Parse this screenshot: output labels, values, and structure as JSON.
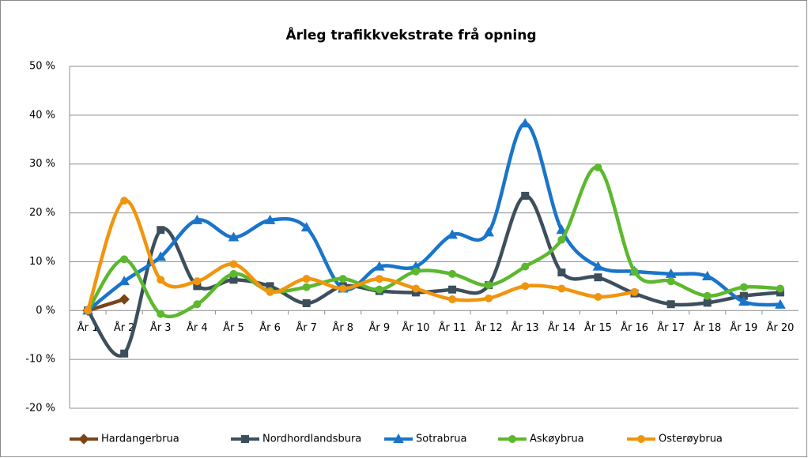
{
  "chart_data": {
    "type": "line",
    "title": "Årleg trafikkvekstrate frå opning",
    "categories": [
      "År 1",
      "År 2",
      "År 3",
      "År 4",
      "År 5",
      "År 6",
      "År 7",
      "År 8",
      "År 9",
      "År 10",
      "År 11",
      "År 12",
      "År 13",
      "År 14",
      "År 15",
      "År 16",
      "År 17",
      "År 18",
      "År 19",
      "År 20"
    ],
    "ylim": [
      -20,
      50
    ],
    "yticks": [
      {
        "value": -20,
        "label": "-20 %"
      },
      {
        "value": -10,
        "label": "-10 %"
      },
      {
        "value": 0,
        "label": "0 %"
      },
      {
        "value": 10,
        "label": "10 %"
      },
      {
        "value": 20,
        "label": "20 %"
      },
      {
        "value": 30,
        "label": "30 %"
      },
      {
        "value": 40,
        "label": "40 %"
      },
      {
        "value": 50,
        "label": "50 %"
      }
    ],
    "grid": true,
    "legend": "bottom",
    "series": [
      {
        "name": "Hardangerbrua",
        "color": "#7b4418",
        "marker": "diamond",
        "values": [
          0,
          2.3,
          null,
          null,
          null,
          null,
          null,
          null,
          null,
          null,
          null,
          null,
          null,
          null,
          null,
          null,
          null,
          null,
          null,
          null
        ]
      },
      {
        "name": "Nordhordlandsbura",
        "color": "#3d4f5c",
        "marker": "square",
        "values": [
          0,
          -8.8,
          16.5,
          5,
          6.3,
          5,
          1.5,
          5,
          4,
          3.7,
          4.3,
          5.2,
          23.5,
          7.8,
          6.8,
          3.5,
          1.3,
          1.6,
          3,
          3.7
        ]
      },
      {
        "name": "Sotrabrua",
        "color": "#1a75c9",
        "marker": "triangle",
        "values": [
          0,
          6,
          11,
          18.5,
          15,
          18.5,
          17,
          4.5,
          9,
          9,
          15.5,
          16,
          38.3,
          16.5,
          9,
          8,
          7.5,
          7,
          1.8,
          1.2
        ]
      },
      {
        "name": "Askøybrua",
        "color": "#5cb82e",
        "marker": "circle",
        "values": [
          0,
          10.5,
          -0.7,
          1.3,
          7.5,
          4,
          4.8,
          6.5,
          4.3,
          8,
          7.5,
          5.2,
          9,
          14.5,
          29.3,
          8,
          6,
          3,
          4.8,
          4.5
        ]
      },
      {
        "name": "Osterøybrua",
        "color": "#f0950e",
        "marker": "circle",
        "values": [
          0,
          22.5,
          6.3,
          6,
          9.5,
          3.8,
          6.5,
          4.5,
          6.5,
          4.5,
          2.3,
          2.5,
          5,
          4.5,
          2.8,
          3.8,
          null,
          null,
          null,
          null
        ]
      }
    ]
  }
}
